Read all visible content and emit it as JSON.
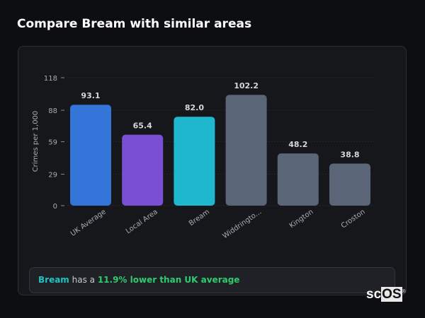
{
  "title": "Compare Bream with similar areas",
  "chart_data": {
    "type": "bar",
    "ylabel": "Crimes per 1,000",
    "ylim": [
      0,
      118
    ],
    "yticks": [
      0,
      29,
      59,
      88,
      118
    ],
    "grid": true,
    "categories": [
      "UK Average",
      "Local Area",
      "Bream",
      "Widdringto...",
      "Kington",
      "Croston"
    ],
    "values": [
      93.1,
      65.4,
      82.0,
      102.2,
      48.2,
      38.8
    ],
    "value_labels": [
      "93.1",
      "65.4",
      "82.0",
      "102.2",
      "48.2",
      "38.8"
    ],
    "colors": [
      "#3574d9",
      "#7b4fd4",
      "#20b8cf",
      "#5a6578",
      "#5a6578",
      "#5a6578"
    ]
  },
  "summary": {
    "area": "Bream",
    "middle": " has a ",
    "highlight": "11.9% lower than UK average"
  },
  "logo": {
    "text_a": "sc",
    "text_b": "OS"
  }
}
